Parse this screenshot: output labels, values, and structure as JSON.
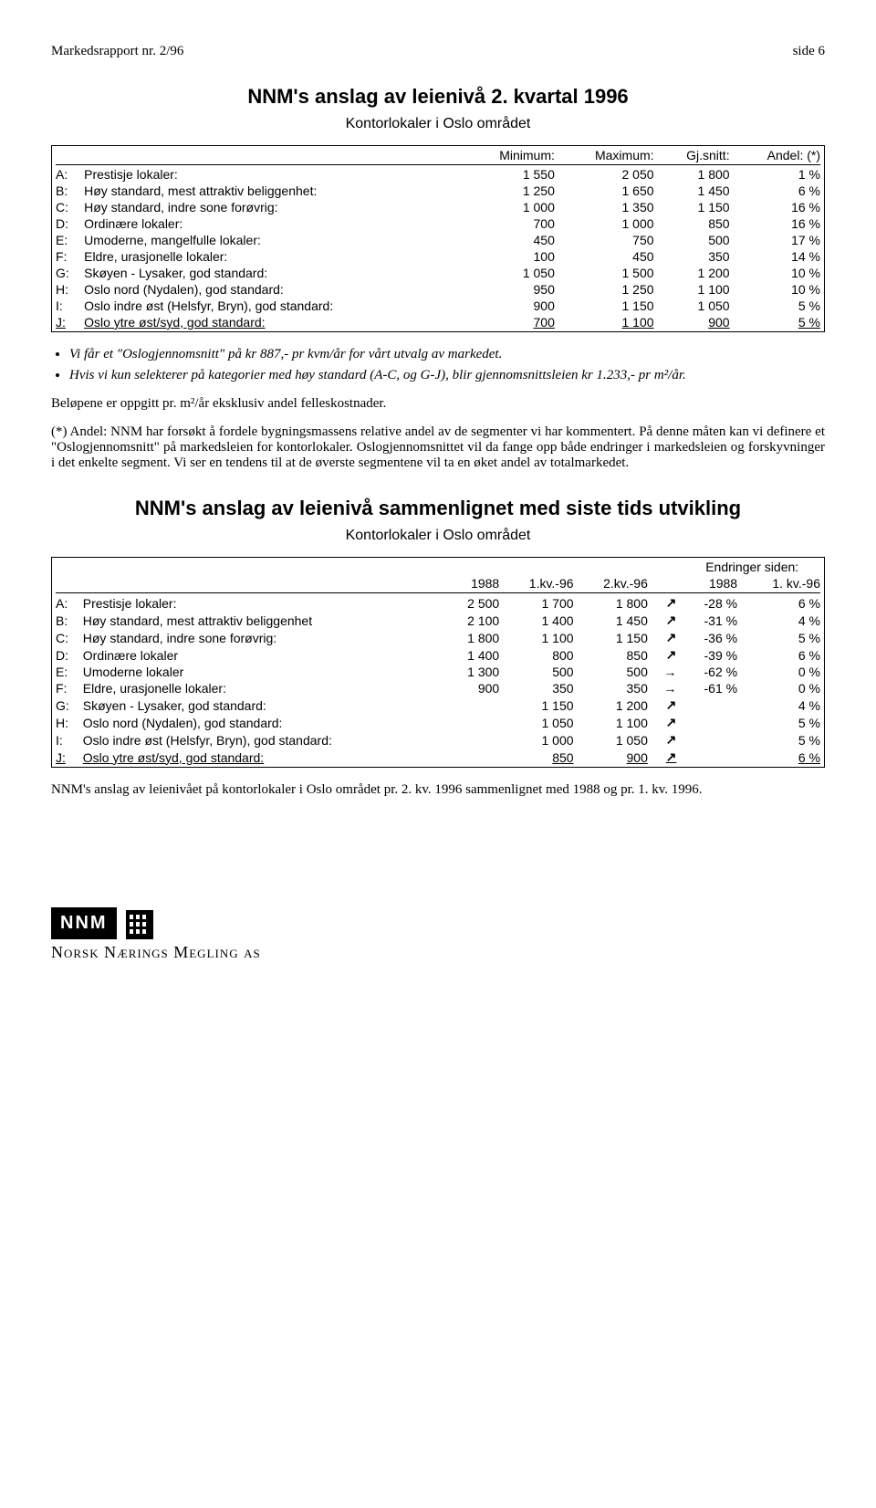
{
  "page_header": {
    "left": "Markedsrapport nr. 2/96",
    "right": "side 6"
  },
  "section1": {
    "title": "NNM's anslag av leienivå 2. kvartal 1996",
    "subtitle": "Kontorlokaler i Oslo området",
    "columns": [
      "",
      "",
      "Minimum:",
      "Maximum:",
      "Gj.snitt:",
      "Andel: (*)"
    ],
    "rows": [
      {
        "key": "A:",
        "label": "Prestisje lokaler:",
        "min": "1 550",
        "max": "2 050",
        "avg": "1 800",
        "pct": "1 %"
      },
      {
        "key": "B:",
        "label": "Høy standard, mest attraktiv beliggenhet:",
        "min": "1 250",
        "max": "1 650",
        "avg": "1 450",
        "pct": "6 %"
      },
      {
        "key": "C:",
        "label": "Høy standard, indre sone forøvrig:",
        "min": "1 000",
        "max": "1 350",
        "avg": "1 150",
        "pct": "16 %"
      },
      {
        "key": "D:",
        "label": "Ordinære lokaler:",
        "min": "700",
        "max": "1 000",
        "avg": "850",
        "pct": "16 %"
      },
      {
        "key": "E:",
        "label": "Umoderne, mangelfulle lokaler:",
        "min": "450",
        "max": "750",
        "avg": "500",
        "pct": "17 %"
      },
      {
        "key": "F:",
        "label": "Eldre, urasjonelle lokaler:",
        "min": "100",
        "max": "450",
        "avg": "350",
        "pct": "14 %"
      },
      {
        "key": "G:",
        "label": "Skøyen - Lysaker, god standard:",
        "min": "1 050",
        "max": "1 500",
        "avg": "1 200",
        "pct": "10 %"
      },
      {
        "key": "H:",
        "label": "Oslo nord (Nydalen), god standard:",
        "min": "950",
        "max": "1 250",
        "avg": "1 100",
        "pct": "10 %"
      },
      {
        "key": "I:",
        "label": "Oslo indre øst (Helsfyr, Bryn), god standard:",
        "min": "900",
        "max": "1 150",
        "avg": "1 050",
        "pct": "5 %"
      },
      {
        "key": "J:",
        "label": "Oslo ytre øst/syd, god standard:",
        "min": "700",
        "max": "1 100",
        "avg": "900",
        "pct": "5 %"
      }
    ]
  },
  "bullets": [
    "Vi får et \"Oslogjennomsnitt\" på kr 887,- pr kvm/år for vårt utvalg av markedet.",
    "Hvis vi kun selekterer på kategorier med høy standard (A-C, og G-J), blir gjennomsnittsleien kr 1.233,- pr m²/år."
  ],
  "para1": "Beløpene er oppgitt pr. m²/år eksklusiv andel felleskostnader.",
  "para2": "(*)   Andel: NNM har forsøkt å fordele bygningsmassens relative andel av de segmenter vi har kommentert. På denne måten kan vi definere et \"Oslogjennomsnitt\" på markedsleien for kontorlokaler. Oslogjennomsnittet vil da fange opp både endringer i markedsleien og forskyvninger i det enkelte segment. Vi ser en tendens til at de øverste segmentene vil ta en øket andel av totalmarkedet.",
  "section2": {
    "title": "NNM's anslag av leienivå sammenlignet med siste tids utvikling",
    "subtitle": "Kontorlokaler i Oslo området",
    "super_header": "Endringer siden:",
    "columns": [
      "",
      "",
      "1988",
      "1.kv.-96",
      "2.kv.-96",
      "",
      "1988",
      "1. kv.-96"
    ],
    "arrow_up": "↗",
    "arrow_right": "→",
    "rows": [
      {
        "key": "A:",
        "label": "Prestisje lokaler:",
        "c1": "2 500",
        "c2": "1 700",
        "c3": "1 800",
        "arrow": "↗",
        "d1": "-28 %",
        "d2": "6 %"
      },
      {
        "key": "B:",
        "label": "Høy standard, mest attraktiv beliggenhet",
        "c1": "2 100",
        "c2": "1 400",
        "c3": "1 450",
        "arrow": "↗",
        "d1": "-31 %",
        "d2": "4 %"
      },
      {
        "key": "C:",
        "label": "Høy standard, indre sone forøvrig:",
        "c1": "1 800",
        "c2": "1 100",
        "c3": "1 150",
        "arrow": "↗",
        "d1": "-36 %",
        "d2": "5 %"
      },
      {
        "key": "D:",
        "label": "Ordinære lokaler",
        "c1": "1 400",
        "c2": "800",
        "c3": "850",
        "arrow": "↗",
        "d1": "-39 %",
        "d2": "6 %"
      },
      {
        "key": "E:",
        "label": "Umoderne lokaler",
        "c1": "1 300",
        "c2": "500",
        "c3": "500",
        "arrow": "→",
        "d1": "-62 %",
        "d2": "0 %"
      },
      {
        "key": "F:",
        "label": "Eldre, urasjonelle lokaler:",
        "c1": "900",
        "c2": "350",
        "c3": "350",
        "arrow": "→",
        "d1": "-61 %",
        "d2": "0 %"
      },
      {
        "key": "G:",
        "label": "Skøyen - Lysaker, god standard:",
        "c1": "",
        "c2": "1 150",
        "c3": "1 200",
        "arrow": "↗",
        "d1": "",
        "d2": "4 %"
      },
      {
        "key": "H:",
        "label": "Oslo nord (Nydalen), god standard:",
        "c1": "",
        "c2": "1 050",
        "c3": "1 100",
        "arrow": "↗",
        "d1": "",
        "d2": "5 %"
      },
      {
        "key": "I:",
        "label": "Oslo indre øst (Helsfyr, Bryn), god standard:",
        "c1": "",
        "c2": "1 000",
        "c3": "1 050",
        "arrow": "↗",
        "d1": "",
        "d2": "5 %"
      },
      {
        "key": "J:",
        "label": "Oslo ytre øst/syd, god standard:",
        "c1": "",
        "c2": "850",
        "c3": "900",
        "arrow": "↗",
        "d1": "",
        "d2": "6 %"
      }
    ]
  },
  "para3": "NNM's anslag av leienivået på kontorlokaler i Oslo området pr. 2. kv. 1996 sammenlignet med 1988 og pr. 1. kv. 1996.",
  "logo": {
    "abbrev": "NNM",
    "name": "Norsk Nærings Megling as"
  },
  "colors": {
    "text": "#000000",
    "bg": "#ffffff",
    "border": "#000000"
  }
}
